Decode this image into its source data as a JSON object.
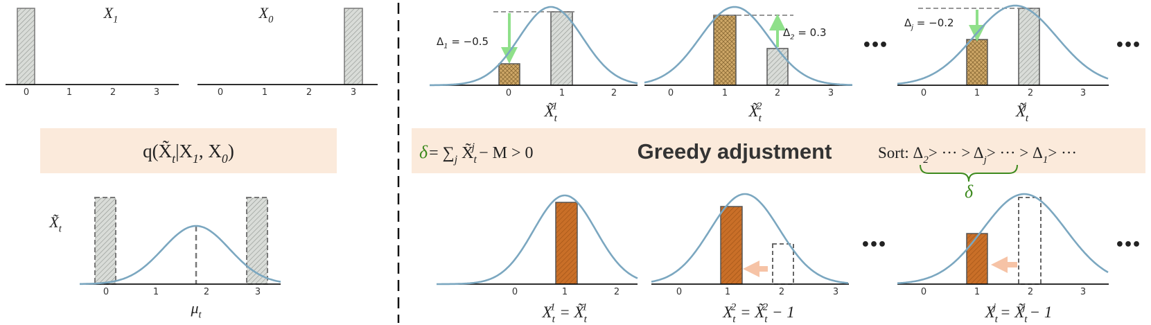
{
  "left": {
    "top_panels": [
      {
        "label": [
          {
            "t": "X"
          },
          {
            "sub": "1"
          }
        ],
        "ticks": [
          0,
          1,
          2,
          3
        ]
      },
      {
        "label": [
          {
            "t": "X"
          },
          {
            "sub": "0"
          }
        ],
        "ticks": [
          0,
          1,
          2,
          3
        ]
      }
    ],
    "q_expr": [
      {
        "t": "q("
      },
      {
        "t": "X̃"
      },
      {
        "sub": "t"
      },
      {
        "t": "|X"
      },
      {
        "sub": "1"
      },
      {
        "t": ", X"
      },
      {
        "sub": "0"
      },
      {
        "t": ")"
      }
    ],
    "bottom_panel": {
      "y_label": [
        {
          "t": "X̃"
        },
        {
          "sub": "t"
        }
      ],
      "x_label": [
        {
          "t": "μ"
        },
        {
          "sub": "t"
        }
      ],
      "ticks": [
        0,
        1,
        2,
        3
      ]
    }
  },
  "right": {
    "top_panels": [
      {
        "delta": [
          {
            "t": "Δ"
          },
          {
            "sub": "1"
          },
          {
            "t": " = −0.5"
          }
        ],
        "ticks": [
          0,
          1,
          2
        ],
        "label": [
          {
            "t": "X̃"
          },
          {
            "sub": "t"
          },
          {
            "sup": "1"
          }
        ]
      },
      {
        "delta": [
          {
            "t": "Δ"
          },
          {
            "sub": "2"
          },
          {
            "t": " = 0.3"
          }
        ],
        "ticks": [
          0,
          1,
          2,
          3
        ],
        "label": [
          {
            "t": "X̃"
          },
          {
            "sub": "t"
          },
          {
            "sup": "2"
          }
        ]
      },
      {
        "delta": [
          {
            "t": "Δ"
          },
          {
            "sub": "j"
          },
          {
            "t": " = −0.2"
          }
        ],
        "ticks": [
          0,
          1,
          2,
          3
        ],
        "label": [
          {
            "t": "X̃"
          },
          {
            "sub": "t"
          },
          {
            "sup": "j"
          }
        ]
      }
    ],
    "ellipsis": "•••",
    "greedy_box": {
      "delta_symbol": "δ",
      "condition": [
        {
          "t": " = ∑"
        },
        {
          "sub": "j"
        },
        {
          "t": " X̃"
        },
        {
          "sub": "t"
        },
        {
          "sup": "j"
        },
        {
          "t": " − M > 0"
        }
      ],
      "title": "Greedy adjustment",
      "sort": [
        {
          "t": "Sort: Δ"
        },
        {
          "sub": "2"
        },
        {
          "t": "> ··· > Δ"
        },
        {
          "sub": "j"
        },
        {
          "t": "> ··· > Δ"
        },
        {
          "sub": "1"
        },
        {
          "t": "> ···"
        }
      ],
      "brace_label": "δ"
    },
    "bottom_panels": [
      {
        "ticks": [
          0,
          1,
          2
        ],
        "label": [
          {
            "t": "X"
          },
          {
            "sub": "t"
          },
          {
            "sup": "1"
          },
          {
            "t": " = X̃"
          },
          {
            "sub": "t"
          },
          {
            "sup": "1"
          }
        ]
      },
      {
        "ticks": [
          0,
          1,
          2,
          3
        ],
        "label": [
          {
            "t": "X"
          },
          {
            "sub": "t"
          },
          {
            "sup": "2"
          },
          {
            "t": " = X̃"
          },
          {
            "sub": "t"
          },
          {
            "sup": "2"
          },
          {
            "t": " − 1"
          }
        ]
      },
      {
        "ticks": [
          0,
          1,
          2,
          3
        ],
        "label": [
          {
            "t": "X"
          },
          {
            "sub": "t"
          },
          {
            "sup": "j"
          },
          {
            "t": " = X̃"
          },
          {
            "sub": "t"
          },
          {
            "sup": "j"
          },
          {
            "t": " − 1"
          }
        ]
      }
    ]
  }
}
